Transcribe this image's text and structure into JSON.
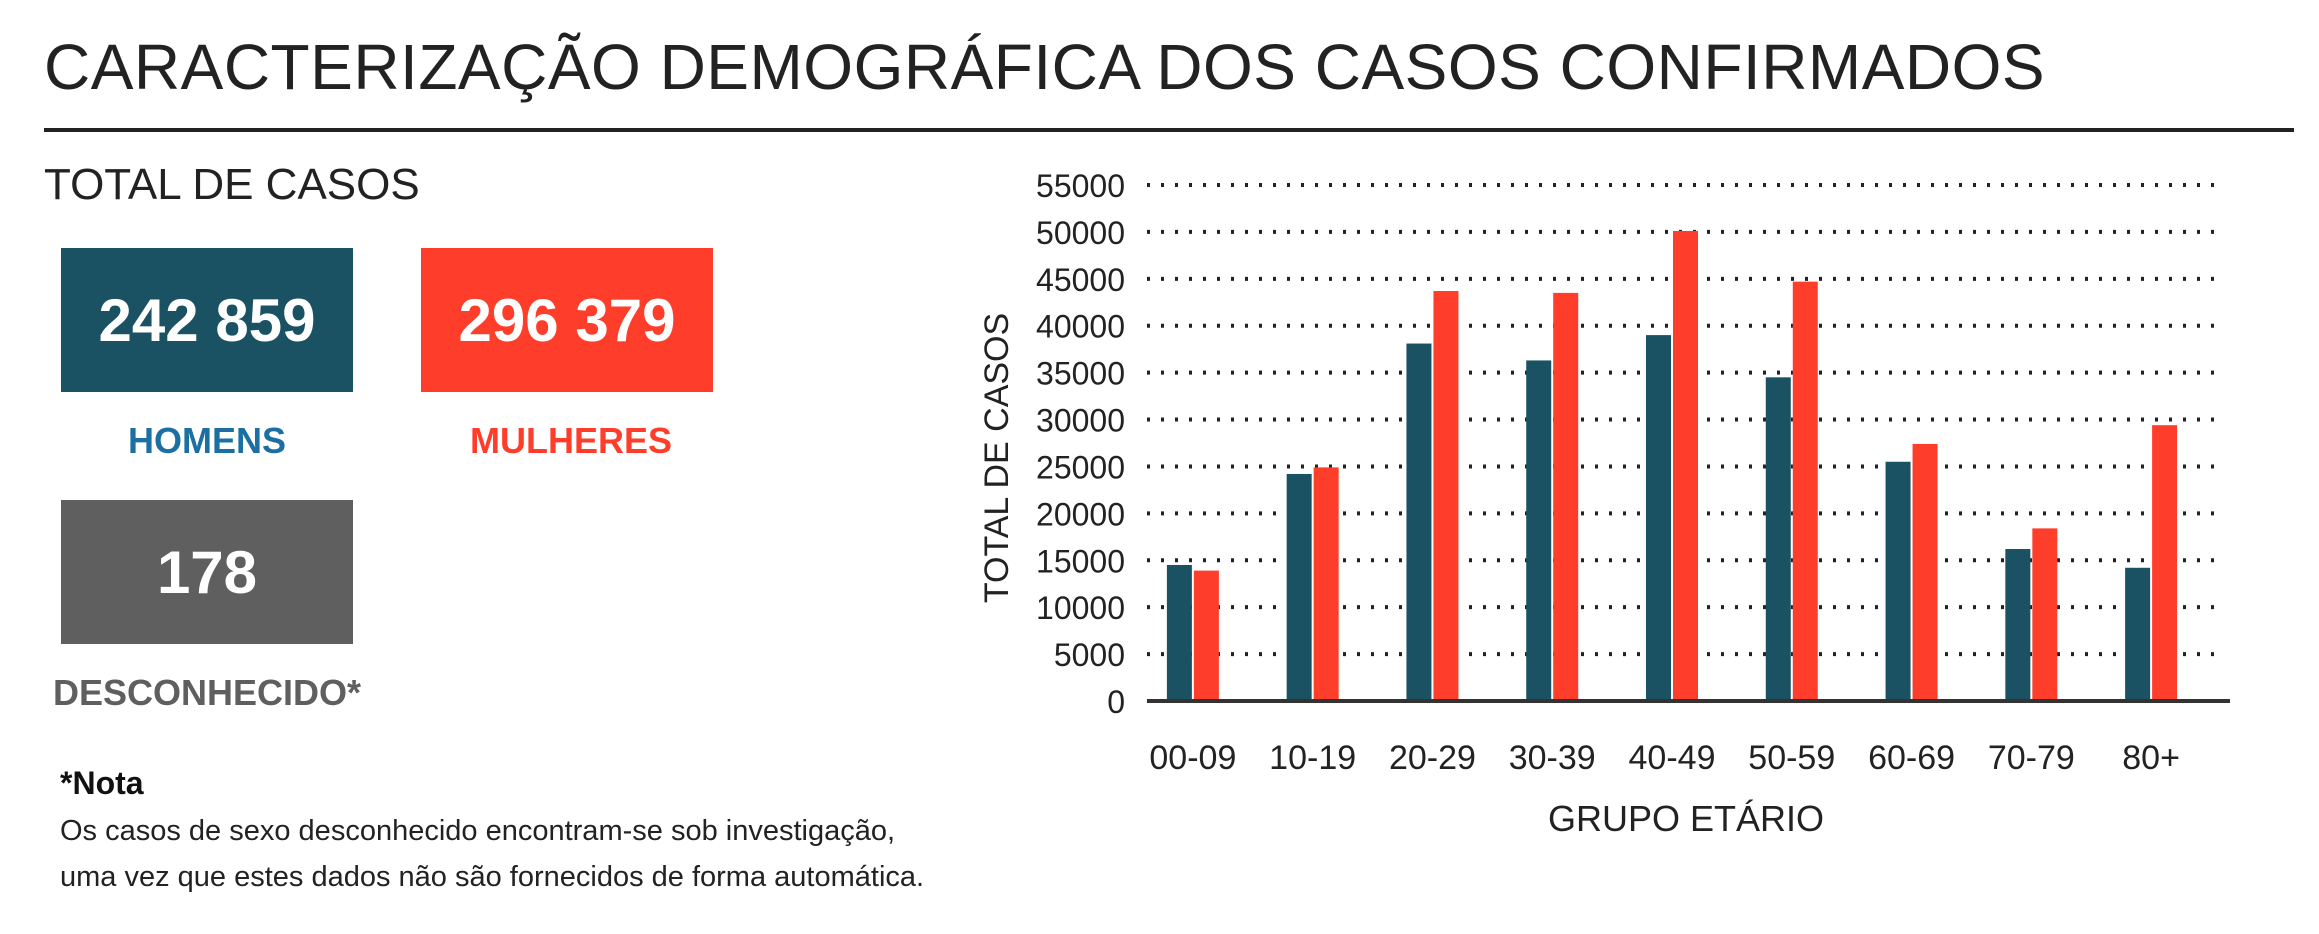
{
  "header": {
    "title": "CARACTERIZAÇÃO DEMOGRÁFICA DOS CASOS CONFIRMADOS"
  },
  "totals": {
    "heading": "TOTAL DE CASOS",
    "men": {
      "value": "242 859",
      "label": "HOMENS",
      "color": "#1a5263",
      "label_color": "#1b6fa3"
    },
    "women": {
      "value": "296 379",
      "label": "MULHERES",
      "color": "#ff3d2b",
      "label_color": "#ff3d2b"
    },
    "unknown": {
      "value": "178",
      "label": "DESCONHECIDO*",
      "color": "#5f5f5f",
      "label_color": "#5f5f5f"
    }
  },
  "note": {
    "title": "*Nota",
    "line1": "Os casos de sexo desconhecido encontram-se sob investigação,",
    "line2": "uma vez que estes dados não são fornecidos de forma automática."
  },
  "chart_data": {
    "type": "bar",
    "xlabel": "GRUPO ETÁRIO",
    "ylabel": "TOTAL DE CASOS",
    "ylim": [
      0,
      55000
    ],
    "yticks": [
      0,
      5000,
      10000,
      15000,
      20000,
      25000,
      30000,
      35000,
      40000,
      45000,
      50000,
      55000
    ],
    "grid": true,
    "categories": [
      "00-09",
      "10-19",
      "20-29",
      "30-39",
      "40-49",
      "50-59",
      "60-69",
      "70-79",
      "80+"
    ],
    "series": [
      {
        "color": "#1a5263",
        "values": [
          14500,
          24200,
          38100,
          36300,
          39000,
          34500,
          25500,
          16200,
          14200
        ]
      },
      {
        "color": "#ff3d2b",
        "values": [
          13900,
          24900,
          43700,
          43500,
          50100,
          44700,
          27400,
          18400,
          29400
        ]
      }
    ]
  }
}
